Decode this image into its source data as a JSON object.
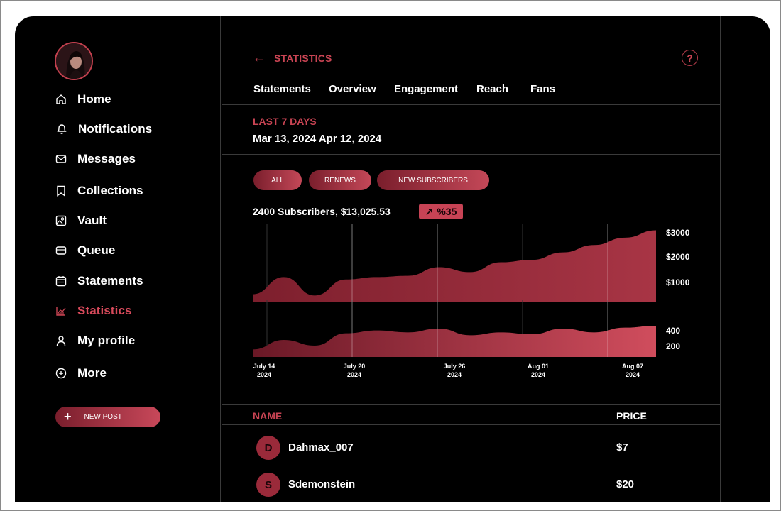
{
  "sidebar": {
    "items": [
      {
        "label": "Home",
        "icon": "home-icon"
      },
      {
        "label": "Notifications",
        "icon": "bell-icon"
      },
      {
        "label": "Messages",
        "icon": "mail-icon"
      },
      {
        "label": "Collections",
        "icon": "bookmark-icon"
      },
      {
        "label": "Vault",
        "icon": "image-icon"
      },
      {
        "label": "Queue",
        "icon": "card-icon"
      },
      {
        "label": "Statements",
        "icon": "calendar-icon"
      },
      {
        "label": "Statistics",
        "icon": "chart-icon",
        "active": true
      },
      {
        "label": "My profile",
        "icon": "user-icon"
      },
      {
        "label": "More",
        "icon": "plus-circle-icon"
      }
    ],
    "new_post_label": "NEW POST"
  },
  "header": {
    "title": "STATISTICS",
    "help_glyph": "?"
  },
  "tabs": [
    "Statements",
    "Overview",
    "Engagement",
    "Reach",
    "Fans"
  ],
  "range": {
    "title": "LAST 7 DAYS",
    "dates": "Mar 13, 2024 Apr 12, 2024"
  },
  "filters": [
    "ALL",
    "RENEWS",
    "NEW SUBSCRIBERS"
  ],
  "summary": {
    "text": "2400 Subscribers, $13,025.53",
    "growth": "%35"
  },
  "table": {
    "headers": {
      "name": "NAME",
      "price": "PRICE"
    },
    "rows": [
      {
        "initial": "D",
        "name": "Dahmax_007",
        "price": "$7"
      },
      {
        "initial": "S",
        "name": "Sdemonstein",
        "price": "$20"
      }
    ]
  },
  "colors": {
    "accent": "#c94453",
    "dark_accent": "#7a1e2c",
    "background": "#000000"
  },
  "chart_data": [
    {
      "type": "area",
      "y_ticks": [
        "$3000",
        "$2000",
        "$1000"
      ],
      "ylim": [
        0,
        3000
      ],
      "x": [
        0,
        2,
        4,
        6,
        8,
        10,
        12,
        14,
        16,
        18,
        20,
        22,
        24,
        26
      ],
      "values": [
        300,
        1000,
        250,
        900,
        1000,
        1050,
        1400,
        1200,
        1600,
        1700,
        2000,
        2300,
        2600,
        2900
      ]
    },
    {
      "type": "area",
      "y_ticks": [
        "400",
        "200"
      ],
      "ylim": [
        0,
        450
      ],
      "x": [
        0,
        2,
        4,
        6,
        8,
        10,
        12,
        14,
        16,
        18,
        20,
        22,
        24,
        26
      ],
      "values": [
        80,
        180,
        120,
        250,
        280,
        260,
        300,
        230,
        260,
        240,
        300,
        260,
        310,
        330
      ],
      "x_ticks": [
        {
          "line1": "July 14",
          "line2": "2024"
        },
        {
          "line1": "July 20",
          "line2": "2024"
        },
        {
          "line1": "July 26",
          "line2": "2024"
        },
        {
          "line1": "Aug 01",
          "line2": "2024"
        },
        {
          "line1": "Aug 07",
          "line2": "2024"
        }
      ]
    }
  ]
}
